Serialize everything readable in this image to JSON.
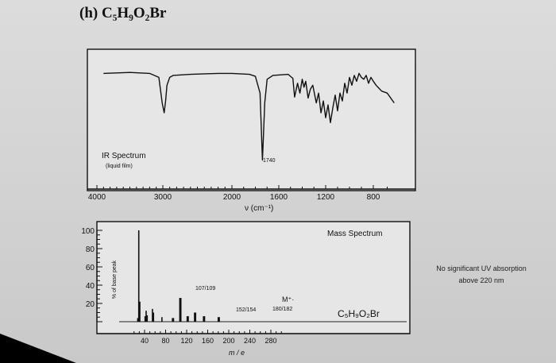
{
  "page": {
    "problem_title": "(h) C₅H₉O₂Br",
    "uv_note": "No significant UV absorption above 220 nm"
  },
  "chart_data": [
    {
      "type": "line",
      "title": "IR Spectrum",
      "subtitle": "(liquid film)",
      "xlabel": "ν (cm⁻¹)",
      "ylabel": "",
      "xlim": [
        4000,
        600
      ],
      "xticks": [
        "4000",
        "3000",
        "2000",
        "1600",
        "1200",
        "800"
      ],
      "annotations": [
        "1740"
      ],
      "grid": false,
      "series": [
        {
          "x": [
            3900,
            3500,
            3200,
            3060,
            3010,
            2980,
            2960,
            2940,
            2900,
            2850,
            2600,
            2200,
            2000,
            1850,
            1800,
            1760,
            1745,
            1740,
            1735,
            1720,
            1700,
            1650,
            1520,
            1480,
            1465,
            1440,
            1420,
            1400,
            1385,
            1370,
            1350,
            1330,
            1310,
            1280,
            1260,
            1240,
            1220,
            1200,
            1180,
            1160,
            1140,
            1120,
            1100,
            1080,
            1060,
            1040,
            1020,
            1000,
            980,
            960,
            940,
            920,
            900,
            880,
            860,
            840,
            820,
            800,
            780,
            760,
            740,
            700,
            650
          ],
          "y": [
            90,
            91,
            90,
            86,
            60,
            50,
            62,
            78,
            86,
            88,
            89,
            90,
            90,
            89,
            87,
            70,
            20,
            2,
            15,
            60,
            84,
            88,
            89,
            85,
            66,
            80,
            70,
            84,
            76,
            82,
            65,
            74,
            78,
            60,
            70,
            50,
            62,
            45,
            58,
            40,
            55,
            68,
            52,
            70,
            62,
            80,
            70,
            86,
            78,
            88,
            82,
            90,
            86,
            84,
            88,
            80,
            86,
            82,
            78,
            75,
            72,
            70,
            60
          ]
        }
      ]
    },
    {
      "type": "bar",
      "title": "Mass Spectrum",
      "formula": "C₅H₉O₂Br",
      "xlabel": "m / e",
      "ylabel": "% of base peak",
      "xlim": [
        10,
        210
      ],
      "ylim": [
        0,
        100
      ],
      "xticks": [
        "40",
        "80",
        "120",
        "160",
        "200",
        "240",
        "280"
      ],
      "yticks": [
        "100",
        "80",
        "60",
        "40",
        "20"
      ],
      "annotations": [
        "107/109",
        "152/154",
        "M⁺·",
        "180/182"
      ],
      "grid": false,
      "bars": [
        {
          "mz": 27,
          "value": 4
        },
        {
          "mz": 29,
          "value": 100
        },
        {
          "mz": 31,
          "value": 22
        },
        {
          "mz": 41,
          "value": 6
        },
        {
          "mz": 43,
          "value": 12
        },
        {
          "mz": 45,
          "value": 7
        },
        {
          "mz": 55,
          "value": 14
        },
        {
          "mz": 57,
          "value": 10
        },
        {
          "mz": 73,
          "value": 5
        },
        {
          "mz": 93,
          "value": 4
        },
        {
          "mz": 95,
          "value": 4
        },
        {
          "mz": 107,
          "value": 26
        },
        {
          "mz": 109,
          "value": 26
        },
        {
          "mz": 121,
          "value": 6
        },
        {
          "mz": 123,
          "value": 6
        },
        {
          "mz": 135,
          "value": 10
        },
        {
          "mz": 137,
          "value": 10
        },
        {
          "mz": 152,
          "value": 6
        },
        {
          "mz": 154,
          "value": 6
        },
        {
          "mz": 180,
          "value": 5
        },
        {
          "mz": 182,
          "value": 5
        }
      ]
    }
  ]
}
